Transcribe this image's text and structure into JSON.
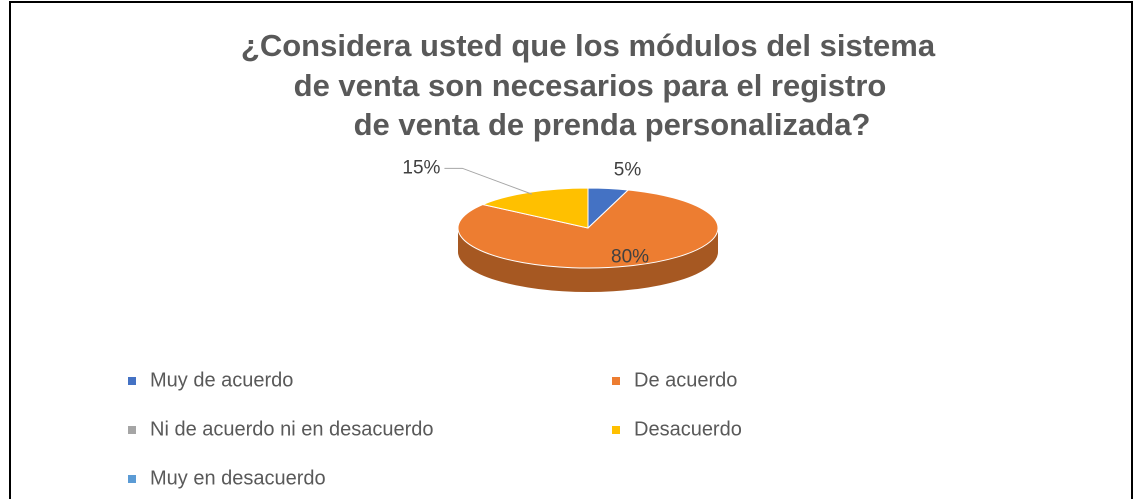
{
  "chart_data": {
    "type": "pie",
    "title": [
      "¿Considera usted que los módulos del sistema",
      "de venta son necesarios para el registro",
      "de venta de prenda personalizada?"
    ],
    "categories": [
      "Muy de acuerdo",
      "De acuerdo",
      "Ni de acuerdo ni en desacuerdo",
      "Desacuerdo",
      "Muy en desacuerdo"
    ],
    "values": [
      5,
      80,
      0,
      15,
      0
    ],
    "value_labels": [
      "5%",
      "80%",
      null,
      "15%",
      null
    ],
    "colors": [
      "#4472c4",
      "#ed7d31",
      "#a5a5a5",
      "#ffc000",
      "#5b9bd5"
    ],
    "legend": "bottom"
  }
}
